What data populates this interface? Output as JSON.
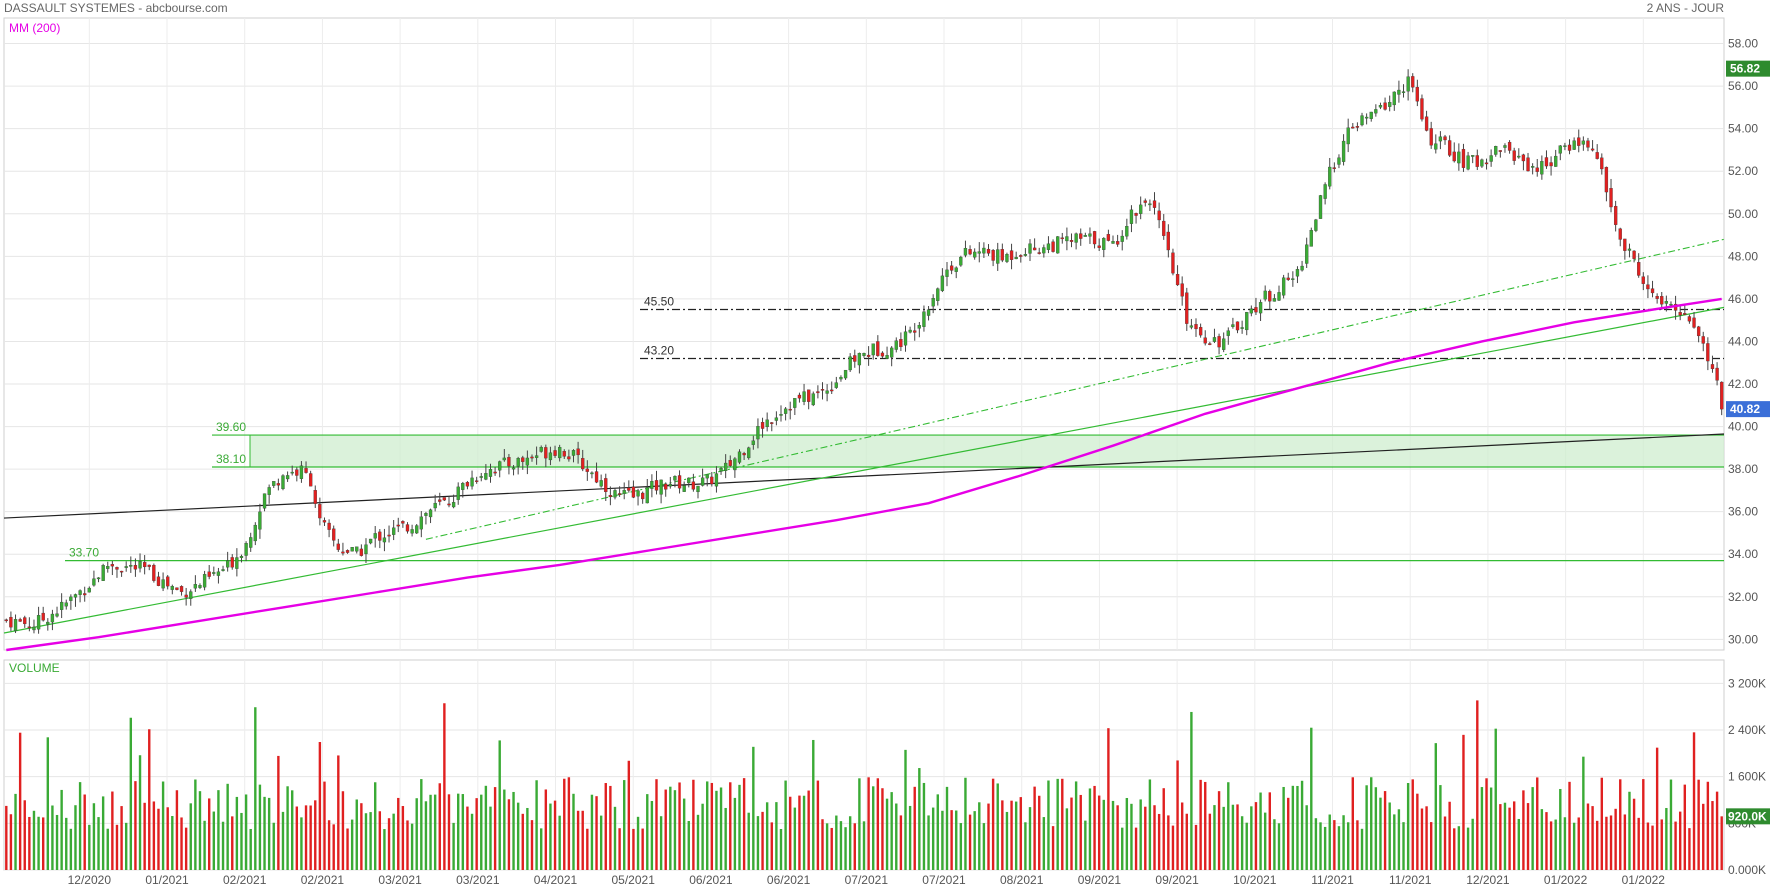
{
  "header": {
    "title": "DASSAULT SYSTEMES - abcbourse.com",
    "period": "2 ANS - JOUR"
  },
  "legend": {
    "ma": "MM (200)",
    "volume": "VOLUME"
  },
  "colors": {
    "up": "#3aaa35",
    "down": "#e02020",
    "ma": "#e600e6",
    "support": "#33bb33",
    "trend": "#222222",
    "dash": "#222222",
    "high_badge": "#2e8b2e",
    "last_badge": "#3b6fd8"
  },
  "chart_data": {
    "type": "candlestick",
    "price_axis": {
      "ylim": [
        29.5,
        59.2
      ],
      "ticks": [
        "58.00",
        "56.00",
        "54.00",
        "52.00",
        "50.00",
        "48.00",
        "46.00",
        "44.00",
        "42.00",
        "40.00",
        "38.00",
        "36.00",
        "34.00",
        "32.00",
        "30.00"
      ]
    },
    "volume_axis": {
      "ylim": [
        0,
        3600000
      ],
      "ticks": [
        "3 200K",
        "2 400K",
        "1 600K",
        "800K",
        "0.000K"
      ]
    },
    "x_labels": [
      "12/2020",
      "01/2021",
      "02/2021",
      "02/2021",
      "03/2021",
      "03/2021",
      "04/2021",
      "05/2021",
      "06/2021",
      "06/2021",
      "07/2021",
      "07/2021",
      "08/2021",
      "09/2021",
      "09/2021",
      "10/2021",
      "11/2021",
      "11/2021",
      "12/2021",
      "01/2022",
      "01/2022"
    ],
    "badges": {
      "high": "56.82",
      "last": "40.82",
      "last_volume": "920.0K"
    },
    "levels": [
      {
        "label": "45.50",
        "value": 45.5,
        "style": "dashdot"
      },
      {
        "label": "43.20",
        "value": 43.2,
        "style": "dashdot"
      },
      {
        "label": "39.60",
        "value": 39.6,
        "style": "zone-top"
      },
      {
        "label": "38.10",
        "value": 38.1,
        "style": "zone-bottom"
      },
      {
        "label": "33.70",
        "value": 33.7,
        "style": "support"
      }
    ],
    "price_path": [
      [
        0,
        30.9
      ],
      [
        6,
        30.7
      ],
      [
        12,
        31.5
      ],
      [
        18,
        32.6
      ],
      [
        22,
        33.5
      ],
      [
        26,
        33.4
      ],
      [
        30,
        33.3
      ],
      [
        34,
        32.7
      ],
      [
        38,
        32.2
      ],
      [
        42,
        32.6
      ],
      [
        48,
        33.4
      ],
      [
        52,
        34.5
      ],
      [
        56,
        36.8
      ],
      [
        60,
        37.8
      ],
      [
        64,
        37.9
      ],
      [
        66,
        37.5
      ],
      [
        68,
        35.5
      ],
      [
        72,
        34.3
      ],
      [
        76,
        34.0
      ],
      [
        80,
        34.8
      ],
      [
        84,
        35.1
      ],
      [
        88,
        35.4
      ],
      [
        92,
        36.1
      ],
      [
        96,
        36.5
      ],
      [
        100,
        37.4
      ],
      [
        104,
        38.0
      ],
      [
        108,
        38.2
      ],
      [
        112,
        38.4
      ],
      [
        116,
        38.8
      ],
      [
        120,
        39.0
      ],
      [
        124,
        38.4
      ],
      [
        128,
        37.6
      ],
      [
        132,
        36.8
      ],
      [
        136,
        36.7
      ],
      [
        140,
        37.1
      ],
      [
        144,
        37.4
      ],
      [
        148,
        37.3
      ],
      [
        152,
        37.4
      ],
      [
        156,
        38.0
      ],
      [
        160,
        39.0
      ],
      [
        164,
        40.1
      ],
      [
        168,
        40.8
      ],
      [
        172,
        41.3
      ],
      [
        176,
        41.5
      ],
      [
        180,
        42.2
      ],
      [
        184,
        43.2
      ],
      [
        188,
        43.6
      ],
      [
        192,
        43.7
      ],
      [
        196,
        44.4
      ],
      [
        200,
        45.8
      ],
      [
        204,
        47.4
      ],
      [
        208,
        48.1
      ],
      [
        212,
        48.2
      ],
      [
        216,
        47.9
      ],
      [
        220,
        48.3
      ],
      [
        224,
        48.4
      ],
      [
        228,
        48.6
      ],
      [
        232,
        48.8
      ],
      [
        236,
        48.8
      ],
      [
        240,
        48.5
      ],
      [
        244,
        50.0
      ],
      [
        248,
        50.8
      ],
      [
        252,
        48.0
      ],
      [
        256,
        45.1
      ],
      [
        260,
        44.2
      ],
      [
        264,
        44.0
      ],
      [
        268,
        45.0
      ],
      [
        272,
        45.9
      ],
      [
        276,
        46.5
      ],
      [
        280,
        47.2
      ],
      [
        284,
        49.9
      ],
      [
        288,
        52.5
      ],
      [
        292,
        54.1
      ],
      [
        296,
        54.6
      ],
      [
        300,
        55.3
      ],
      [
        304,
        56.3
      ],
      [
        306,
        55.2
      ],
      [
        308,
        53.6
      ],
      [
        312,
        53.2
      ],
      [
        316,
        52.4
      ],
      [
        320,
        52.5
      ],
      [
        324,
        53.2
      ],
      [
        328,
        52.6
      ],
      [
        332,
        52.1
      ],
      [
        336,
        52.7
      ],
      [
        340,
        53.4
      ],
      [
        344,
        53.2
      ],
      [
        346,
        51.8
      ],
      [
        348,
        50.3
      ],
      [
        350,
        48.7
      ],
      [
        354,
        47.4
      ],
      [
        356,
        46.3
      ],
      [
        360,
        45.6
      ],
      [
        364,
        45.4
      ],
      [
        367,
        44.4
      ],
      [
        370,
        42.5
      ],
      [
        372,
        42.3
      ]
    ],
    "ma200_path": [
      [
        0,
        29.5
      ],
      [
        20,
        30.1
      ],
      [
        40,
        30.8
      ],
      [
        60,
        31.5
      ],
      [
        80,
        32.2
      ],
      [
        100,
        32.9
      ],
      [
        120,
        33.5
      ],
      [
        140,
        34.2
      ],
      [
        160,
        34.9
      ],
      [
        180,
        35.6
      ],
      [
        200,
        36.4
      ],
      [
        220,
        37.7
      ],
      [
        240,
        39.1
      ],
      [
        260,
        40.6
      ],
      [
        280,
        41.8
      ],
      [
        300,
        43.0
      ],
      [
        320,
        44.0
      ],
      [
        340,
        44.9
      ],
      [
        360,
        45.6
      ],
      [
        372,
        46.0
      ]
    ]
  }
}
